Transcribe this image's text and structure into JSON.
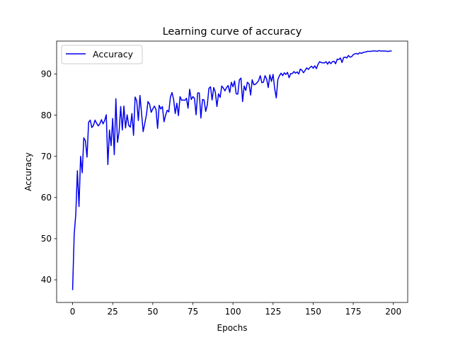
{
  "chart_data": {
    "type": "line",
    "title": "Learning curve of accuracy",
    "xlabel": "Epochs",
    "ylabel": "Accuracy",
    "xlim": [
      -9.95,
      208.95
    ],
    "ylim": [
      34.5,
      98.0
    ],
    "xticks": [
      0,
      25,
      50,
      75,
      100,
      125,
      150,
      175,
      200
    ],
    "yticks": [
      40,
      50,
      60,
      70,
      80,
      90
    ],
    "grid": false,
    "legend_position": "upper-left",
    "color": "#0000ee",
    "series": [
      {
        "name": "Accuracy",
        "x": [
          0,
          1,
          2,
          3,
          4,
          5,
          6,
          7,
          8,
          9,
          10,
          11,
          12,
          13,
          14,
          15,
          16,
          17,
          18,
          19,
          20,
          21,
          22,
          23,
          24,
          25,
          26,
          27,
          28,
          29,
          30,
          31,
          32,
          33,
          34,
          35,
          36,
          37,
          38,
          39,
          40,
          41,
          42,
          43,
          44,
          45,
          46,
          47,
          48,
          49,
          50,
          51,
          52,
          53,
          54,
          55,
          56,
          57,
          58,
          59,
          60,
          61,
          62,
          63,
          64,
          65,
          66,
          67,
          68,
          69,
          70,
          71,
          72,
          73,
          74,
          75,
          76,
          77,
          78,
          79,
          80,
          81,
          82,
          83,
          84,
          85,
          86,
          87,
          88,
          89,
          90,
          91,
          92,
          93,
          94,
          95,
          96,
          97,
          98,
          99,
          100,
          101,
          102,
          103,
          104,
          105,
          106,
          107,
          108,
          109,
          110,
          111,
          112,
          113,
          114,
          115,
          116,
          117,
          118,
          119,
          120,
          121,
          122,
          123,
          124,
          125,
          126,
          127,
          128,
          129,
          130,
          131,
          132,
          133,
          134,
          135,
          136,
          137,
          138,
          139,
          140,
          141,
          142,
          143,
          144,
          145,
          146,
          147,
          148,
          149,
          150,
          151,
          152,
          153,
          154,
          155,
          156,
          157,
          158,
          159,
          160,
          161,
          162,
          163,
          164,
          165,
          166,
          167,
          168,
          169,
          170,
          171,
          172,
          173,
          174,
          175,
          176,
          177,
          178,
          179,
          180,
          181,
          182,
          183,
          184,
          185,
          186,
          187,
          188,
          189,
          190,
          191,
          192,
          193,
          194,
          195,
          196,
          197,
          198,
          199
        ],
        "values": [
          37.5,
          51.0,
          56.0,
          66.5,
          57.8,
          70.0,
          66.0,
          74.5,
          73.8,
          69.8,
          78.3,
          78.8,
          77.0,
          77.5,
          78.8,
          78.0,
          77.4,
          77.9,
          78.9,
          77.9,
          78.7,
          80.1,
          68.0,
          76.4,
          72.6,
          79.2,
          70.4,
          84.0,
          73.4,
          76.0,
          82.1,
          76.4,
          82.2,
          76.9,
          80.1,
          77.5,
          77.1,
          80.4,
          75.1,
          84.4,
          83.5,
          78.7,
          84.8,
          80.5,
          76.0,
          78.0,
          80.0,
          83.3,
          82.7,
          80.7,
          81.5,
          82.2,
          81.4,
          76.8,
          82.4,
          81.5,
          82.1,
          78.4,
          80.0,
          81.2,
          80.8,
          84.4,
          85.5,
          83.8,
          80.4,
          82.9,
          79.9,
          84.5,
          83.6,
          83.7,
          83.6,
          84.1,
          81.7,
          86.3,
          83.8,
          84.5,
          84.1,
          80.1,
          85.4,
          85.4,
          79.3,
          83.8,
          83.7,
          80.9,
          82.5,
          86.5,
          86.9,
          83.7,
          86.7,
          85.6,
          82.1,
          85.2,
          84.3,
          87.1,
          86.6,
          85.9,
          86.7,
          87.2,
          85.5,
          88.0,
          86.9,
          88.3,
          85.2,
          85.1,
          88.6,
          89.0,
          83.3,
          87.1,
          86.0,
          88.0,
          87.6,
          84.9,
          88.6,
          87.4,
          87.5,
          87.9,
          88.4,
          89.6,
          87.9,
          88.0,
          89.6,
          88.8,
          86.7,
          89.8,
          88.2,
          89.9,
          86.5,
          84.2,
          88.7,
          89.6,
          90.2,
          89.6,
          90.3,
          89.9,
          90.4,
          89.1,
          90.1,
          90.1,
          90.6,
          90.2,
          90.5,
          90.0,
          91.2,
          90.9,
          90.3,
          90.9,
          91.5,
          91.1,
          91.6,
          91.9,
          91.4,
          92.0,
          91.3,
          92.3,
          93.0,
          92.8,
          92.7,
          92.7,
          93.0,
          92.4,
          93.0,
          92.5,
          93.0,
          93.1,
          92.5,
          93.6,
          93.5,
          93.9,
          92.8,
          94.0,
          94.1,
          93.9,
          94.5,
          94.1,
          94.2,
          94.7,
          94.9,
          95.0,
          94.8,
          95.2,
          95.0,
          95.2,
          95.3,
          95.4,
          95.5,
          95.5,
          95.5,
          95.6,
          95.6,
          95.6,
          95.5,
          95.7,
          95.6,
          95.6,
          95.6,
          95.6,
          95.5,
          95.5,
          95.6,
          95.6
        ]
      }
    ]
  }
}
